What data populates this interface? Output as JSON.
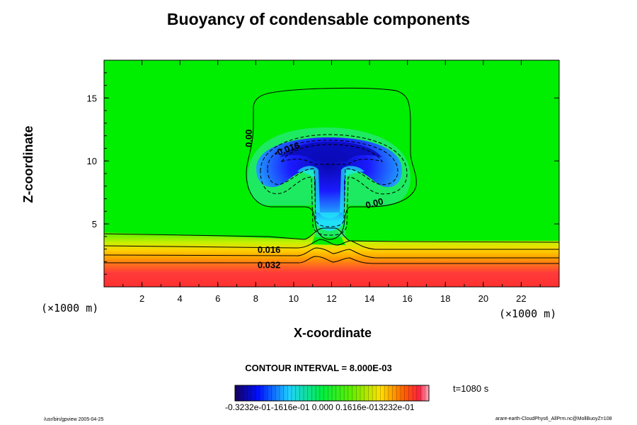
{
  "title": "Buoyancy of condensable components",
  "contour_interval_text": "CONTOUR INTERVAL = 8.000E-03",
  "time_text": "t=1080 s",
  "scale_label_x": "(×1000 m)",
  "scale_label_z": "(×1000 m)",
  "footer_left": "/usr/bin/gpview 2005-04-25",
  "footer_right": "arare-earth-CloudPhys6_AllPrm.nc@MollBuoyZ=108",
  "colorbar_label": "-0.3232e-01-1616e-01 0.000 0.1616e-013232e-01",
  "colors": {
    "green": "#00ee00",
    "red": "#ff2a2a",
    "blue": "#1a1aff",
    "cyan": "#20e8f8"
  },
  "chart_data": {
    "type": "heatmap",
    "title": "Buoyancy of condensable components",
    "xlabel": "X-coordinate",
    "ylabel": "Z-coordinate",
    "xlim": [
      0,
      24
    ],
    "ylim": [
      0,
      18
    ],
    "x_ticks": [
      2,
      4,
      6,
      8,
      10,
      12,
      14,
      16,
      18,
      20,
      22
    ],
    "y_ticks": [
      5,
      10,
      15
    ],
    "contour_interval": 0.008,
    "colorbar_range": [
      -0.03232,
      0.03232
    ],
    "colorbar_ticks": [
      -0.03232,
      -0.01616,
      0,
      0.01616,
      0.03232
    ],
    "contour_labels": [
      {
        "text": "0.00",
        "x": 7.8,
        "y": 11.8,
        "rotation": -90
      },
      {
        "text": "-0.016",
        "x": 9.7,
        "y": 10.7,
        "rotation": -20
      },
      {
        "text": "0.00",
        "x": 14.3,
        "y": 6.4,
        "rotation": -15
      },
      {
        "text": "0.016",
        "x": 8.7,
        "y": 2.7,
        "rotation": 0
      },
      {
        "text": "0.032",
        "x": 8.7,
        "y": 1.5,
        "rotation": 0
      }
    ],
    "levels": [
      -0.032,
      -0.024,
      -0.016,
      -0.008,
      0.0,
      0.008,
      0.016,
      0.024,
      0.032
    ]
  }
}
